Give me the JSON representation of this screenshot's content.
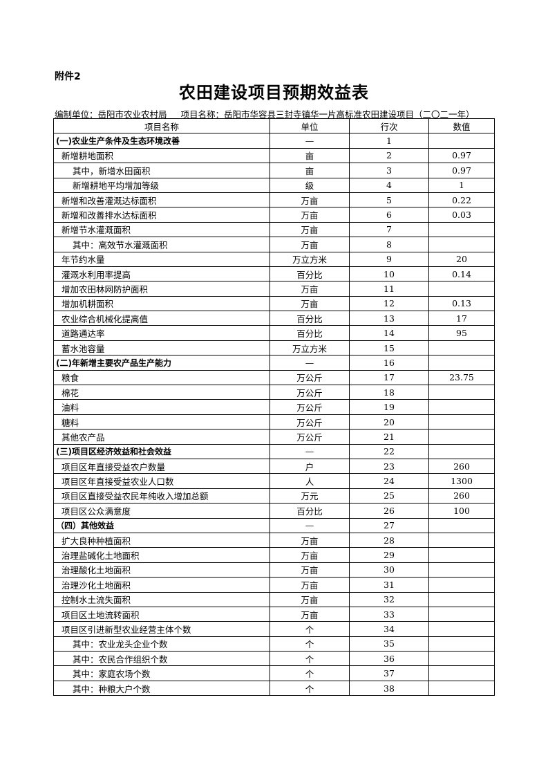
{
  "attachment": "附件2",
  "title": "农田建设项目预期效益表",
  "compiler": "编制单位：岳阳市农业农村局",
  "project": "项目名称：岳阳市华容县三封寺镇华一片高标准农田建设项目（二〇二一年）",
  "headers": [
    "项目名称",
    "单位",
    "行次",
    "数值"
  ],
  "rows": [
    {
      "name": "(一)农业生产条件及生态环境改善",
      "unit": "—",
      "no": "1",
      "value": "",
      "level": 1
    },
    {
      "name": "新增耕地面积",
      "unit": "亩",
      "no": "2",
      "value": "0.97",
      "level": 2
    },
    {
      "name": "其中，新增水田面积",
      "unit": "亩",
      "no": "3",
      "value": "0.97",
      "level": 3
    },
    {
      "name": "新增耕地平均增加等级",
      "unit": "级",
      "no": "4",
      "value": "1",
      "level": 3
    },
    {
      "name": "新增和改善灌溉达标面积",
      "unit": "万亩",
      "no": "5",
      "value": "0.22",
      "level": 2
    },
    {
      "name": "新增和改善排水达标面积",
      "unit": "万亩",
      "no": "6",
      "value": "0.03",
      "level": 2
    },
    {
      "name": "新增节水灌溉面积",
      "unit": "万亩",
      "no": "7",
      "value": "",
      "level": 2
    },
    {
      "name": "其中：高效节水灌溉面积",
      "unit": "万亩",
      "no": "8",
      "value": "",
      "level": 3
    },
    {
      "name": "年节约水量",
      "unit": "万立方米",
      "no": "9",
      "value": "20",
      "level": 2
    },
    {
      "name": "灌溉水利用率提高",
      "unit": "百分比",
      "no": "10",
      "value": "0.14",
      "level": 2
    },
    {
      "name": "增加农田林网防护面积",
      "unit": "万亩",
      "no": "11",
      "value": "",
      "level": 2
    },
    {
      "name": "增加机耕面积",
      "unit": "万亩",
      "no": "12",
      "value": "0.13",
      "level": 2
    },
    {
      "name": "农业综合机械化提高值",
      "unit": "百分比",
      "no": "13",
      "value": "17",
      "level": 2
    },
    {
      "name": "道路通达率",
      "unit": "百分比",
      "no": "14",
      "value": "95",
      "level": 2
    },
    {
      "name": "蓄水池容量",
      "unit": "万立方米",
      "no": "15",
      "value": "",
      "level": 2
    },
    {
      "name": "(二)年新增主要农产品生产能力",
      "unit": "—",
      "no": "16",
      "value": "",
      "level": 1
    },
    {
      "name": "粮食",
      "unit": "万公斤",
      "no": "17",
      "value": "23.75",
      "level": 2
    },
    {
      "name": "棉花",
      "unit": "万公斤",
      "no": "18",
      "value": "",
      "level": 2
    },
    {
      "name": "油料",
      "unit": "万公斤",
      "no": "19",
      "value": "",
      "level": 2
    },
    {
      "name": "糖料",
      "unit": "万公斤",
      "no": "20",
      "value": "",
      "level": 2
    },
    {
      "name": "其他农产品",
      "unit": "万公斤",
      "no": "21",
      "value": "",
      "level": 2
    },
    {
      "name": "(三)项目区经济效益和社会效益",
      "unit": "—",
      "no": "22",
      "value": "",
      "level": 1
    },
    {
      "name": "项目区年直接受益农户数量",
      "unit": "户",
      "no": "23",
      "value": "260",
      "level": 2
    },
    {
      "name": "项目区年直接受益农业人口数",
      "unit": "人",
      "no": "24",
      "value": "1300",
      "level": 2
    },
    {
      "name": "项目区直接受益农民年纯收入增加总额",
      "unit": "万元",
      "no": "25",
      "value": "260",
      "level": 2
    },
    {
      "name": "项目区公众满意度",
      "unit": "百分比",
      "no": "26",
      "value": "100",
      "level": 2
    },
    {
      "name": "（四）其他效益",
      "unit": "—",
      "no": "27",
      "value": "",
      "level": 1
    },
    {
      "name": "扩大良种种植面积",
      "unit": "万亩",
      "no": "28",
      "value": "",
      "level": 2
    },
    {
      "name": "治理盐碱化土地面积",
      "unit": "万亩",
      "no": "29",
      "value": "",
      "level": 2
    },
    {
      "name": "治理酸化土地面积",
      "unit": "万亩",
      "no": "30",
      "value": "",
      "level": 2
    },
    {
      "name": "治理沙化土地面积",
      "unit": "万亩",
      "no": "31",
      "value": "",
      "level": 2
    },
    {
      "name": "控制水土流失面积",
      "unit": "万亩",
      "no": "32",
      "value": "",
      "level": 2
    },
    {
      "name": "项目区土地流转面积",
      "unit": "万亩",
      "no": "33",
      "value": "",
      "level": 2
    },
    {
      "name": "项目区引进新型农业经营主体个数",
      "unit": "个",
      "no": "34",
      "value": "",
      "level": 2
    },
    {
      "name": "其中：农业龙头企业个数",
      "unit": "个",
      "no": "35",
      "value": "",
      "level": 3
    },
    {
      "name": "其中：农民合作组织个数",
      "unit": "个",
      "no": "36",
      "value": "",
      "level": 3
    },
    {
      "name": "其中：家庭农场个数",
      "unit": "个",
      "no": "37",
      "value": "",
      "level": 3
    },
    {
      "name": "其中：种粮大户个数",
      "unit": "个",
      "no": "38",
      "value": "",
      "level": 3
    }
  ]
}
